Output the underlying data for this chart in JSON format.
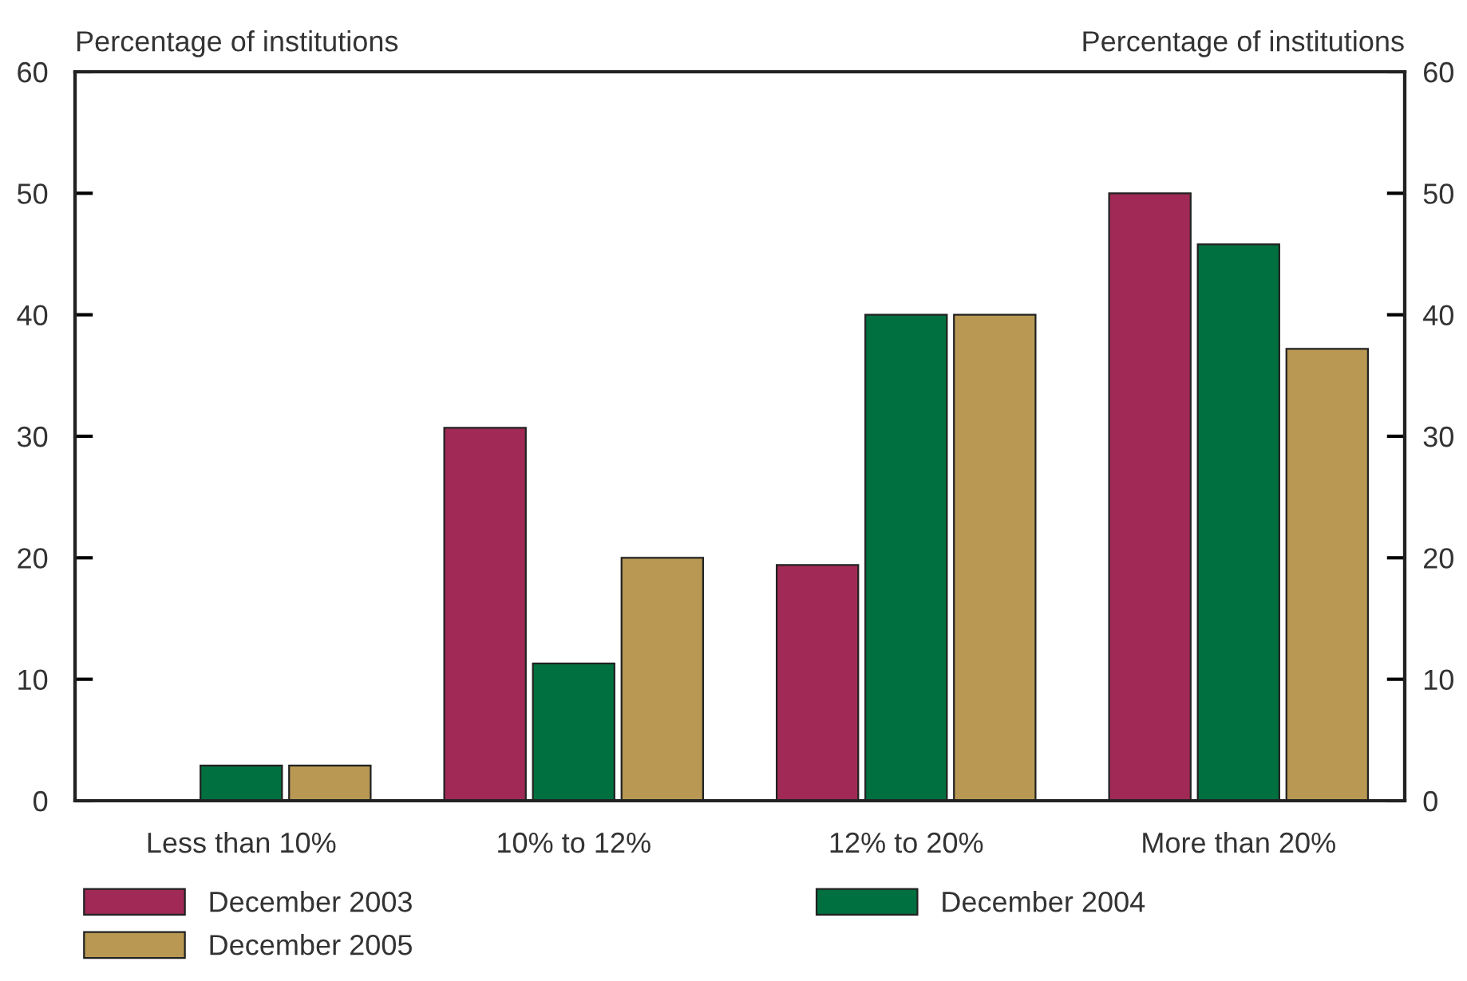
{
  "chart_data": {
    "type": "bar",
    "ylabel": "Percentage of institutions",
    "y2label": "Percentage of institutions",
    "categories": [
      "Less than 10%",
      "10% to 12%",
      "12% to 20%",
      "More than 20%"
    ],
    "series": [
      {
        "name": "December 2003",
        "color": "#a02a55",
        "values": [
          null,
          30.7,
          19.4,
          50
        ]
      },
      {
        "name": "December 2004",
        "color": "#007040",
        "values": [
          2.9,
          11.3,
          40,
          45.8
        ]
      },
      {
        "name": "December 2005",
        "color": "#b89853",
        "values": [
          2.9,
          20,
          40,
          37.2
        ]
      }
    ],
    "ylim": [
      0,
      60
    ],
    "yticks": [
      0,
      10,
      20,
      30,
      40,
      50,
      60
    ],
    "y2lim": [
      0,
      60
    ],
    "y2ticks": [
      0,
      10,
      20,
      30,
      40,
      50,
      60
    ],
    "grid": false,
    "legend": "bottom"
  }
}
